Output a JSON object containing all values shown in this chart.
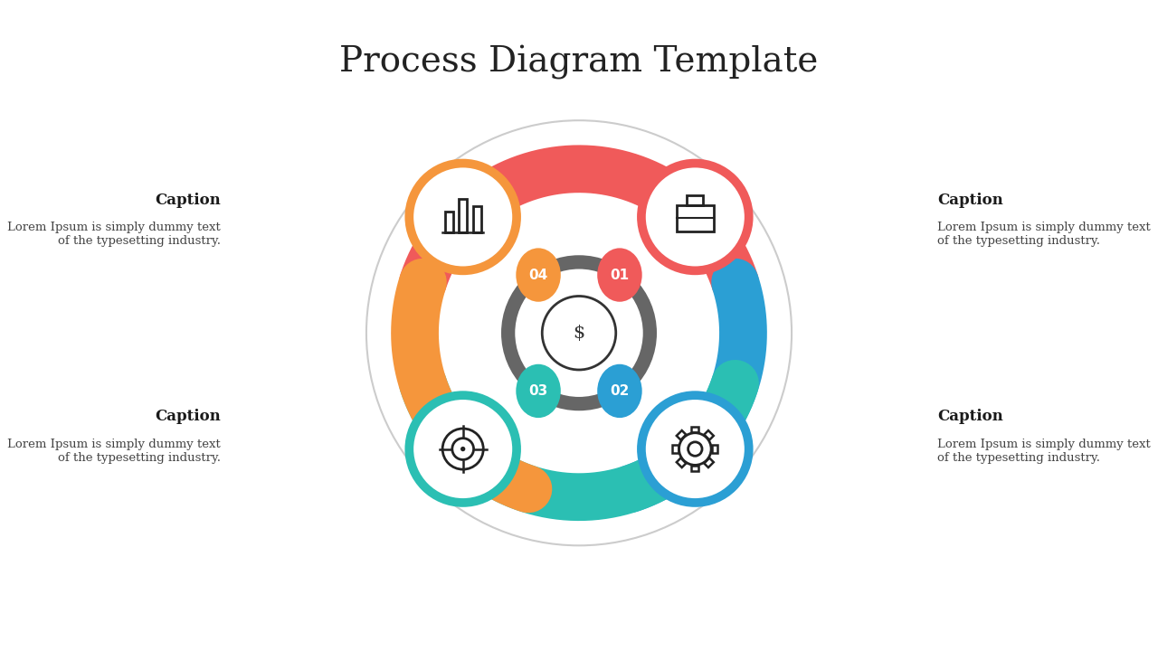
{
  "title": "Process Diagram Template",
  "title_fontsize": 28,
  "background_color": "#ffffff",
  "caption_text": "Caption",
  "body_text": "Lorem Ipsum is simply dummy text\nof the typesetting industry.",
  "arc_colors": {
    "top": "#F05A5A",
    "right": "#2B9FD4",
    "bottom": "#2BBFB3",
    "left": "#F5963C"
  },
  "segment_colors": {
    "01": "#F05A5A",
    "02": "#2B9FD4",
    "03": "#2BBFB3",
    "04": "#F5963C"
  },
  "outer_ring_color": "#cccccc",
  "inner_ring_color": "#666666",
  "center_stroke_color": "#333333"
}
